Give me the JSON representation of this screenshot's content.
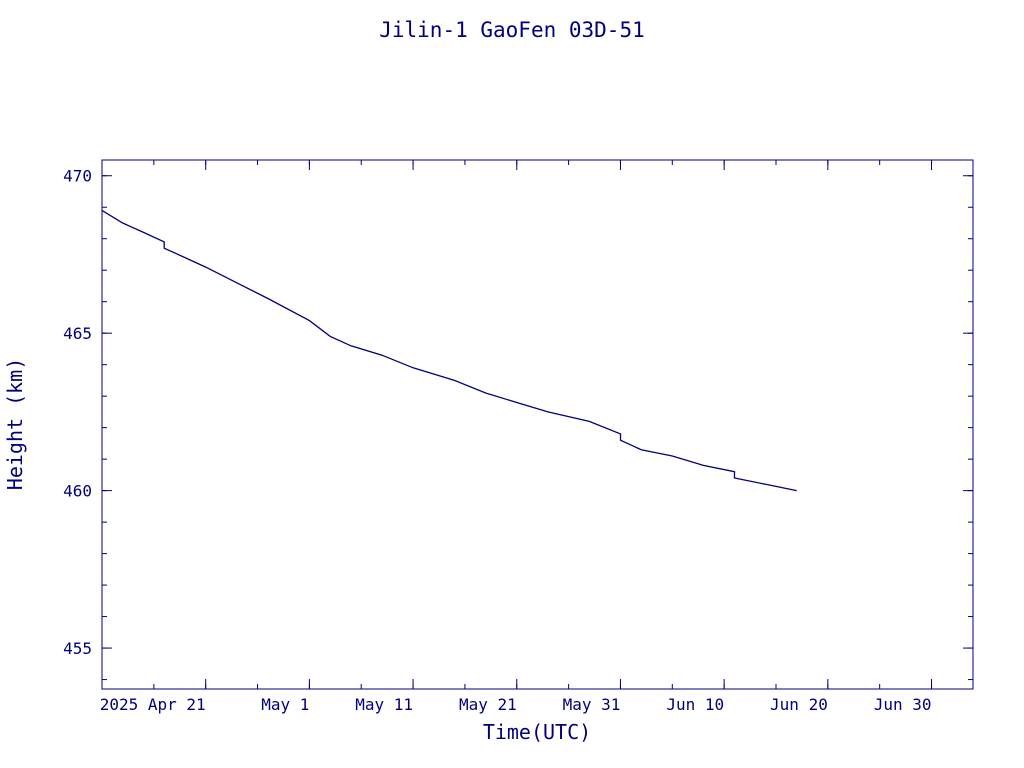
{
  "chart_data": {
    "type": "line",
    "title": "Jilin-1 GaoFen 03D-51",
    "xlabel": "Time(UTC)",
    "ylabel": "Height (km)",
    "color": "#00007f",
    "ylim": [
      453.7,
      470.5
    ],
    "xlim": [
      "2025-04-11",
      "2025-07-04"
    ],
    "y_ticks": [
      "455",
      "460",
      "465",
      "470"
    ],
    "x_ticks": [
      {
        "date": "2025-04-21",
        "label": "2025 Apr 21"
      },
      {
        "date": "2025-05-01",
        "label": "May  1"
      },
      {
        "date": "2025-05-11",
        "label": "May 11"
      },
      {
        "date": "2025-05-21",
        "label": "May 21"
      },
      {
        "date": "2025-05-31",
        "label": "May 31"
      },
      {
        "date": "2025-06-10",
        "label": "Jun 10"
      },
      {
        "date": "2025-06-20",
        "label": "Jun 20"
      },
      {
        "date": "2025-06-30",
        "label": "Jun 30"
      }
    ],
    "grid": false,
    "series": [
      {
        "x": [
          "2025-04-11",
          "2025-04-13",
          "2025-04-15",
          "2025-04-17",
          "2025-04-17",
          "2025-04-19",
          "2025-04-21",
          "2025-04-24",
          "2025-04-27",
          "2025-05-01",
          "2025-05-03",
          "2025-05-05",
          "2025-05-08",
          "2025-05-11",
          "2025-05-15",
          "2025-05-18",
          "2025-05-21",
          "2025-05-24",
          "2025-05-28",
          "2025-05-31",
          "2025-05-31",
          "2025-06-02",
          "2025-06-05",
          "2025-06-08",
          "2025-06-11",
          "2025-06-11",
          "2025-06-14",
          "2025-06-17"
        ],
        "y": [
          468.9,
          468.5,
          468.2,
          467.9,
          467.7,
          467.4,
          467.1,
          466.6,
          466.1,
          465.4,
          464.9,
          464.6,
          464.3,
          463.9,
          463.5,
          463.1,
          462.8,
          462.5,
          462.2,
          461.8,
          461.6,
          461.3,
          461.1,
          460.8,
          460.6,
          460.4,
          460.2,
          460.0
        ]
      }
    ]
  }
}
